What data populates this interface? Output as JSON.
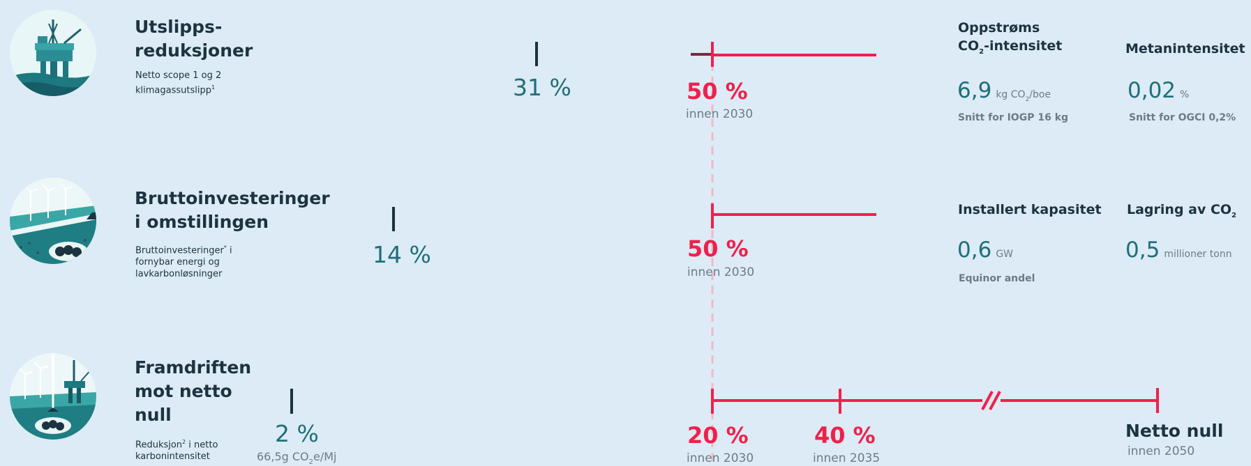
{
  "colors": {
    "navy": "#1c3340",
    "teal": "#1f6f7a",
    "red": "#f0204b",
    "grey": "#6c7c86",
    "background": "#dcebf5"
  },
  "rows": [
    {
      "icon": "oil-platform-icon",
      "title_line1": "Utslipps-",
      "title_line2": "reduksjoner",
      "desc_line1": "Netto scope 1 og 2",
      "desc_line2": "klimagassutslipp",
      "desc_sup": "1",
      "current_value": "31 %",
      "target_value": "50 %",
      "target_sub": "innen 2030",
      "progress_fraction": 0.62
    },
    {
      "icon": "wind-and-ccs-icon",
      "title_line1": "Bruttoinvesteringer",
      "title_line2": "i omstillingen",
      "desc_line1": "Bruttoinvesteringer",
      "desc_sup": "*",
      "desc_line1_tail": " i",
      "desc_line2": "fornybar energi og",
      "desc_line3": "lavkarbonløsninger",
      "current_value": "14 %",
      "target_value": "50 %",
      "target_sub": "innen 2030",
      "progress_fraction": 0.28
    },
    {
      "icon": "energy-mix-icon",
      "title_line1": "Framdriften",
      "title_line2": "mot netto",
      "title_line3": "null",
      "desc_line1": "Reduksjon",
      "desc_sup": "2",
      "desc_line1_tail": " i netto",
      "desc_line2": "karbonintensitet",
      "current_value": "2 %",
      "current_sub": "66,5g CO",
      "current_sub_subscript": "2",
      "current_sub_tail": "e/Mj",
      "progress_fraction": 0.02,
      "targets": [
        {
          "value": "20 %",
          "sub": "innen 2030"
        },
        {
          "value": "40 %",
          "sub": "innen 2035"
        }
      ],
      "final_value": "Netto null",
      "final_sub": "innen 2050",
      "break_mark": "//"
    }
  ],
  "metrics": {
    "upstream": {
      "head_line1": "Oppstrøms",
      "head_line2_pre": "CO",
      "head_line2_sub": "2",
      "head_line2_tail": "-intensitet",
      "value": "6,9",
      "unit_pre": "kg CO",
      "unit_sub": "2",
      "unit_tail": "/boe",
      "note": "Snitt for IOGP 16 kg"
    },
    "methane": {
      "head": "Metanintensitet",
      "value": "0,02",
      "unit": "%",
      "note": "Snitt for OGCI 0,2%"
    },
    "capacity": {
      "head": "Installert kapasitet",
      "value": "0,6",
      "unit": "GW",
      "note": "Equinor andel"
    },
    "storage": {
      "head_pre": "Lagring av CO",
      "head_sub": "2",
      "value": "0,5",
      "unit": "millioner tonn"
    }
  }
}
